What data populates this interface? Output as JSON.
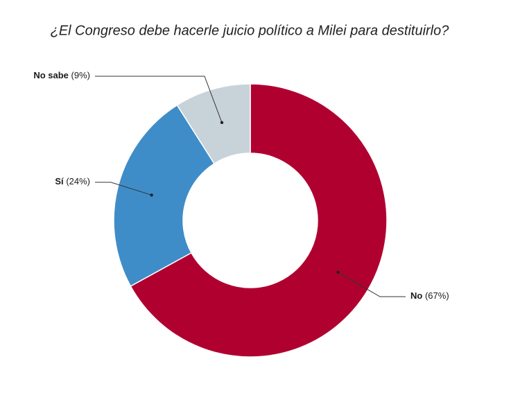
{
  "chart_data": {
    "type": "donut",
    "title": "¿El Congreso debe hacerle juicio político a Milei para destituirlo?",
    "categories": [
      "No",
      "Sí",
      "No sabe"
    ],
    "values": [
      67,
      24,
      9
    ],
    "value_labels": [
      "(67%)",
      "(24%)",
      "(9%)"
    ],
    "colors": [
      "#b00030",
      "#3f8dc8",
      "#c8d3d9"
    ]
  }
}
